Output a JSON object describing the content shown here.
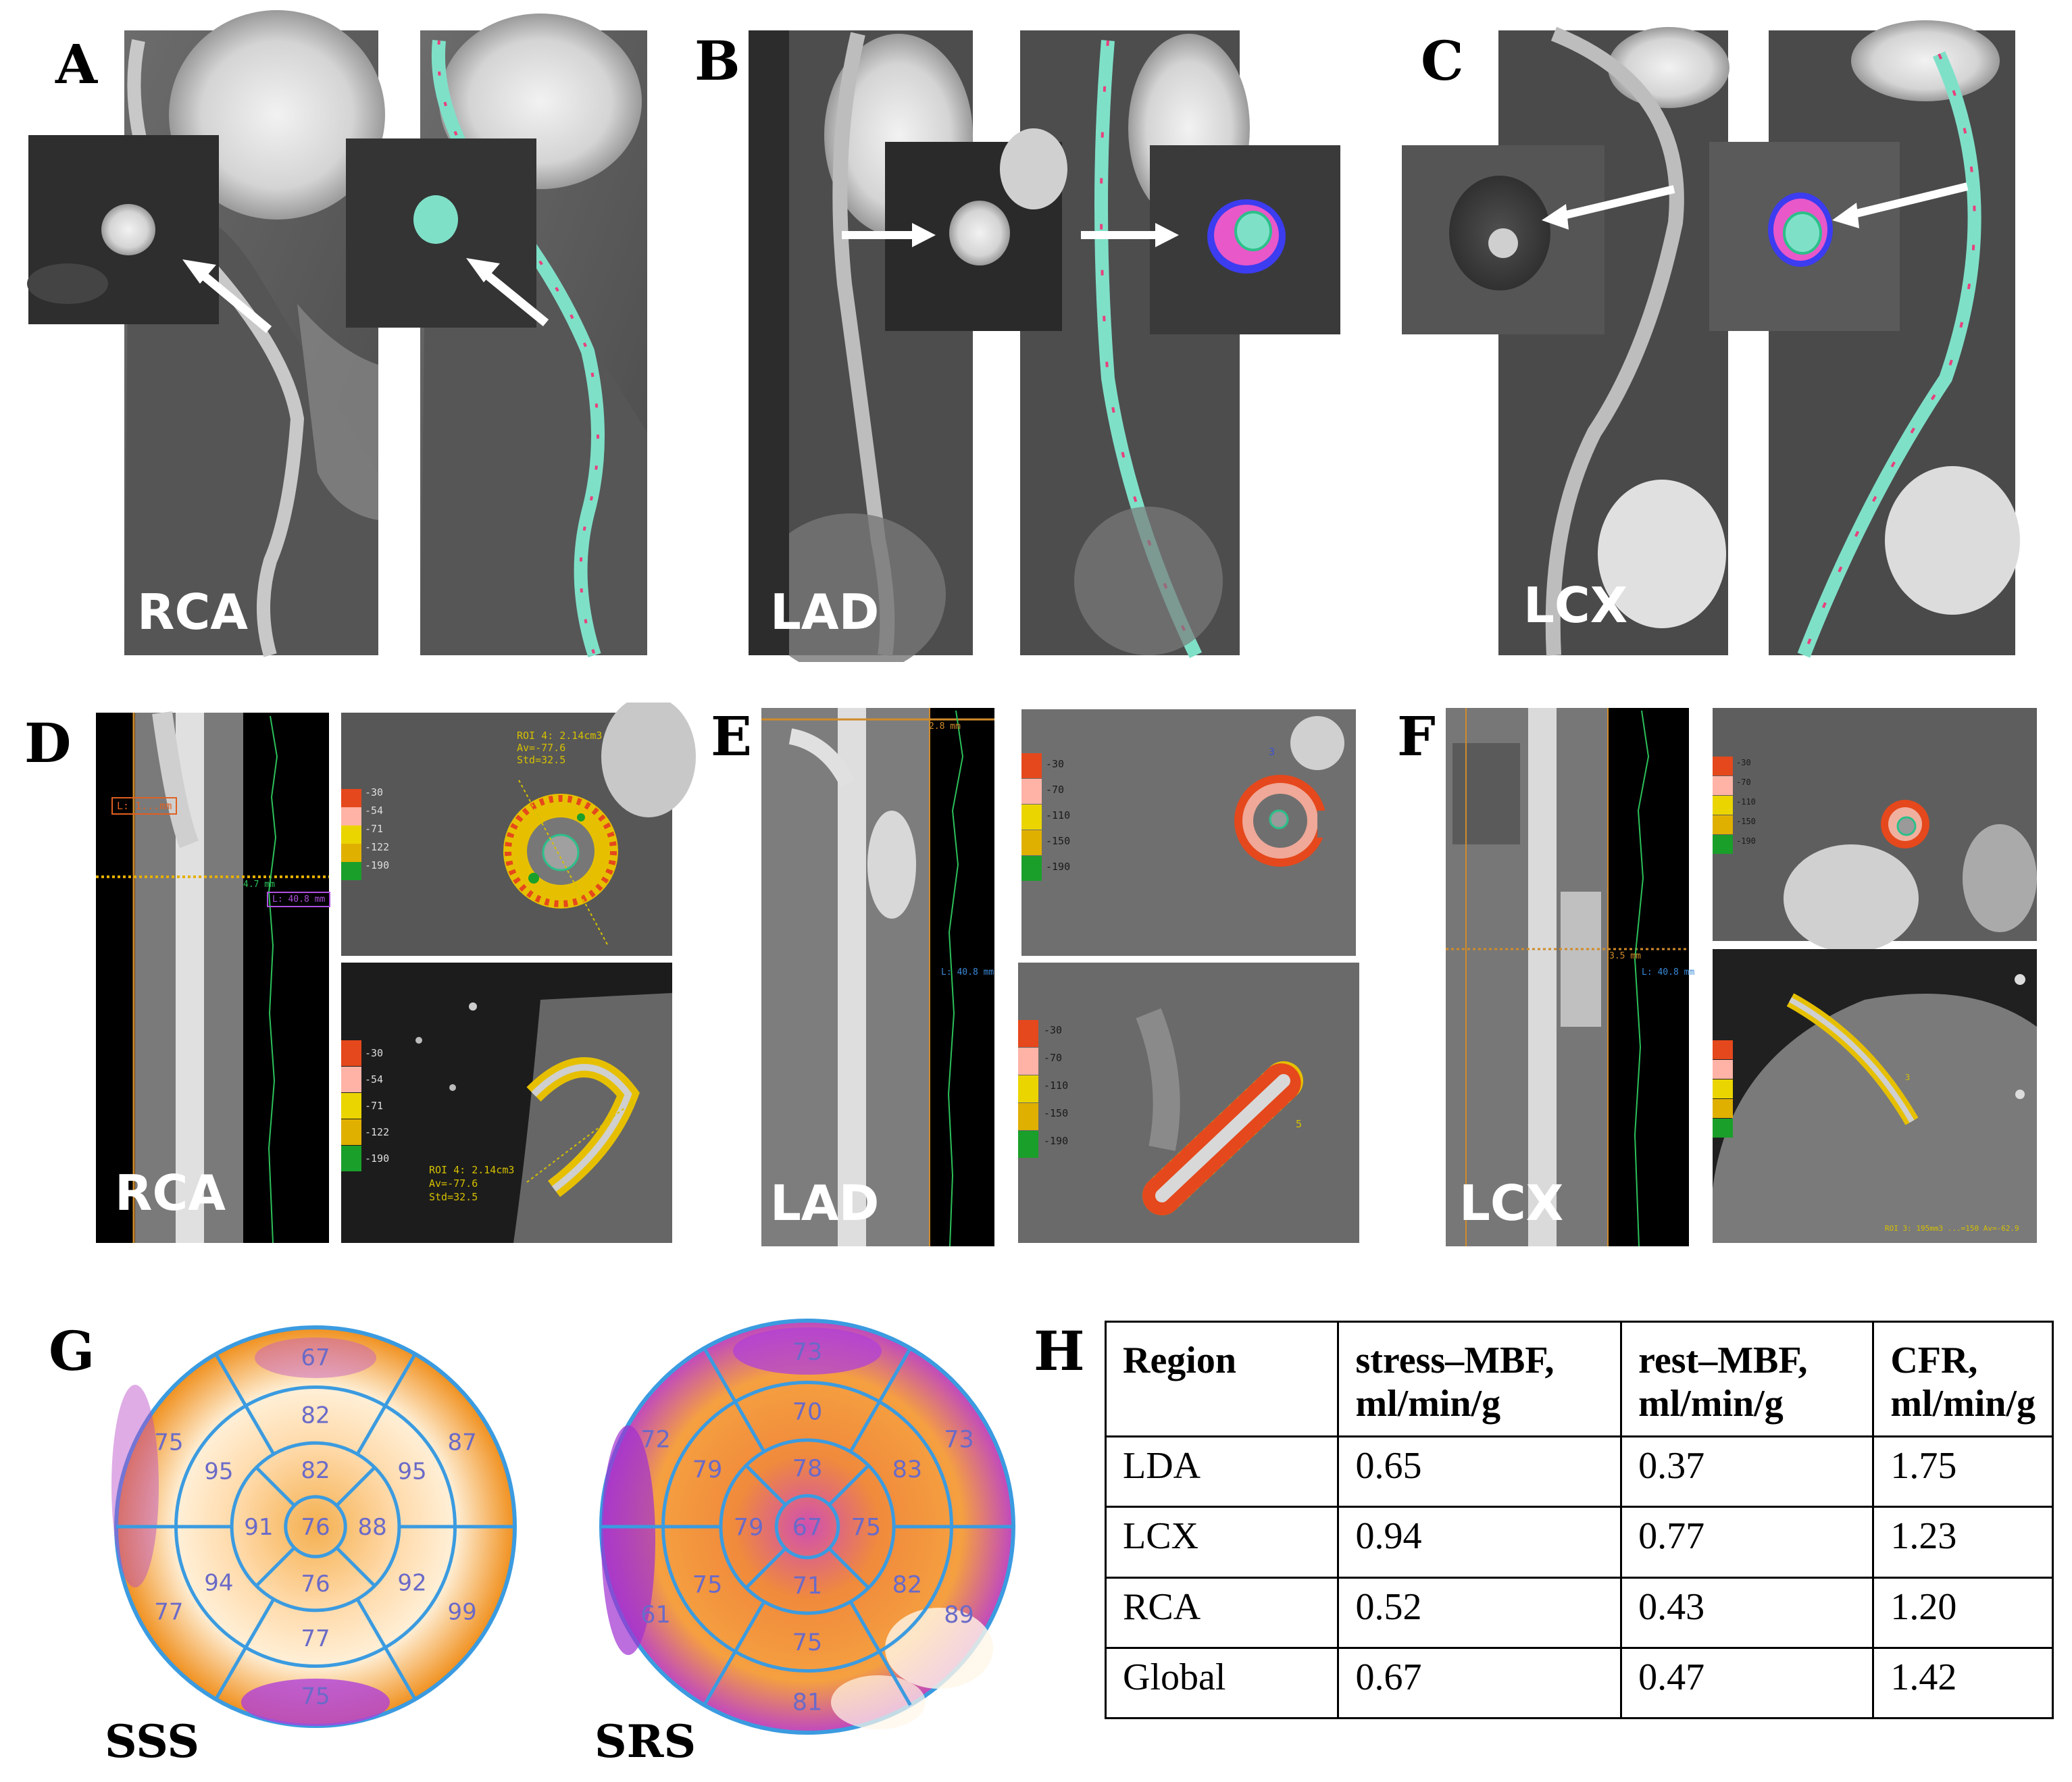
{
  "panels": {
    "A": {
      "label": "A",
      "vessel": "RCA"
    },
    "B": {
      "label": "B",
      "vessel": "LAD"
    },
    "C": {
      "label": "C",
      "vessel": "LCX"
    },
    "D": {
      "label": "D",
      "vessel": "RCA"
    },
    "E": {
      "label": "E",
      "vessel": "LAD"
    },
    "F": {
      "label": "F",
      "vessel": "LCX"
    },
    "G": {
      "label": "G"
    },
    "H": {
      "label": "H"
    }
  },
  "analysis": {
    "D": {
      "scale": [
        "-30",
        "-54",
        "-71",
        "-122",
        "-190"
      ],
      "length_top": "L: 1...mm",
      "measure": "4.7 mm",
      "length_mid": "L: 40.8 mm",
      "roi_top": [
        "ROI 4: 2.14cm3",
        "Av=-77.6",
        "Std=32.5"
      ],
      "roi_bottom": [
        "ROI 4: 2.14cm3",
        "Av=-77.6",
        "Std=32.5"
      ],
      "marker": "4"
    },
    "E": {
      "scale": [
        "-30",
        "-70",
        "-110",
        "-150",
        "-190"
      ],
      "measure": "2.8 mm",
      "length_mid": "L: 40.8 mm",
      "marker_top": "3",
      "marker_bottom": "5"
    },
    "F": {
      "scale": [
        "-30",
        "-70",
        "-110",
        "-150",
        "-190"
      ],
      "measure": "3.5 mm",
      "length_mid": "L: 40.8 mm",
      "roi": "ROI 3: 195mm3 ...=150 Av=-62.9",
      "marker": "3"
    }
  },
  "colors": {
    "scale": [
      "#e5481c",
      "#ffb3a6",
      "#ead500",
      "#e0b000",
      "#1a9f2a"
    ],
    "plaque_outer": "#e8407c",
    "plaque_fill": "#7fe0c8",
    "lumen": "#2cc08a",
    "vessel_border": "#3c3cf0",
    "polar_lines": "#3b9be0",
    "polar_text": "#6a6ac8"
  },
  "polar_maps": {
    "sss": {
      "caption": "SSS",
      "ring1": [
        "67",
        "87",
        "99",
        "75",
        "77",
        "75"
      ],
      "ring2": [
        "82",
        "95",
        "92",
        "77",
        "94",
        "95"
      ],
      "ring3": [
        "82",
        "88",
        "76",
        "91"
      ],
      "apex": "76"
    },
    "srs": {
      "caption": "SRS",
      "ring1": [
        "73",
        "73",
        "89",
        "81",
        "61",
        "72"
      ],
      "ring2": [
        "70",
        "83",
        "82",
        "75",
        "75",
        "79"
      ],
      "ring3": [
        "78",
        "75",
        "71",
        "79"
      ],
      "apex": "67"
    }
  },
  "table": {
    "headers": [
      [
        "Region",
        ""
      ],
      [
        "stress–MBF,",
        "ml/min/g"
      ],
      [
        "rest–MBF,",
        "ml/min/g"
      ],
      [
        "CFR,",
        "ml/min/g"
      ]
    ],
    "rows": [
      [
        "LDA",
        "0.65",
        "0.37",
        "1.75"
      ],
      [
        "LCX",
        "0.94",
        "0.77",
        "1.23"
      ],
      [
        "RCA",
        "0.52",
        "0.43",
        "1.20"
      ],
      [
        "Global",
        "0.67",
        "0.47",
        "1.42"
      ]
    ]
  }
}
